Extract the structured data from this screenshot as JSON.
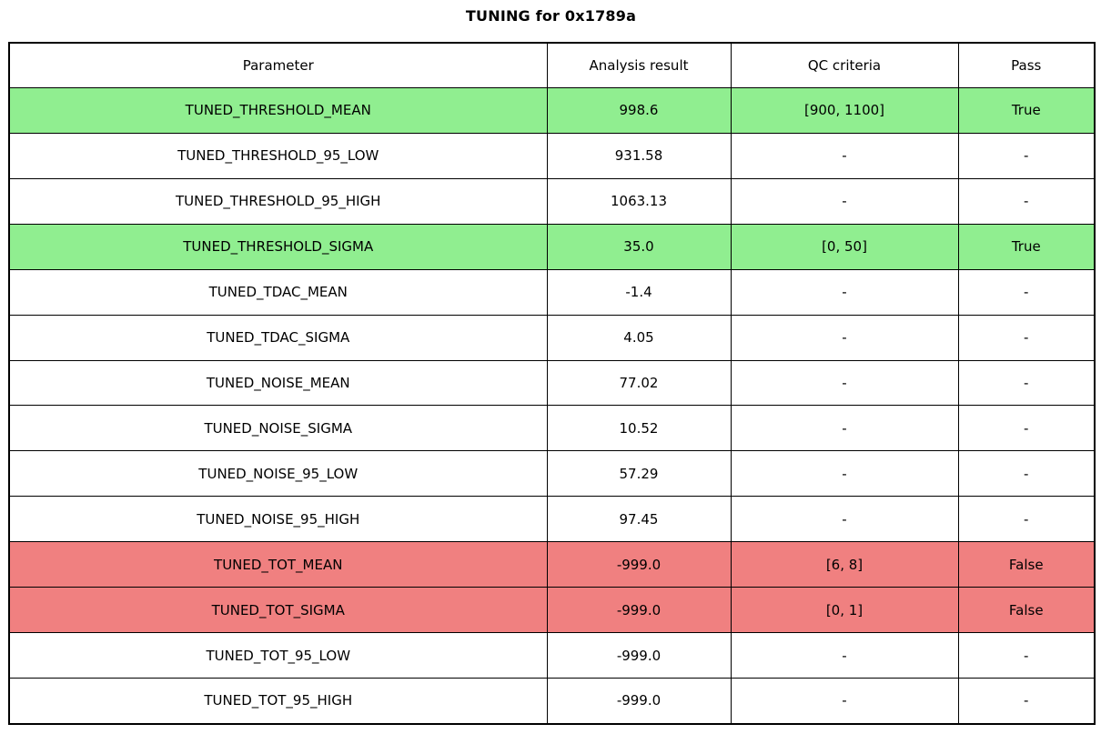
{
  "title": "TUNING for 0x1789a",
  "colors": {
    "pass_row": "#90EE90",
    "fail_row": "#F08080",
    "default_row": "#FFFFFF",
    "border": "#000000",
    "text": "#000000"
  },
  "chart_data": {
    "type": "table",
    "title": "TUNING for 0x1789a",
    "columns": [
      "Parameter",
      "Analysis result",
      "QC criteria",
      "Pass"
    ],
    "rows": [
      {
        "parameter": "TUNED_THRESHOLD_MEAN",
        "result": "998.6",
        "qc": "[900, 1100]",
        "pass": "True",
        "status": "pass"
      },
      {
        "parameter": "TUNED_THRESHOLD_95_LOW",
        "result": "931.58",
        "qc": "-",
        "pass": "-",
        "status": "none"
      },
      {
        "parameter": "TUNED_THRESHOLD_95_HIGH",
        "result": "1063.13",
        "qc": "-",
        "pass": "-",
        "status": "none"
      },
      {
        "parameter": "TUNED_THRESHOLD_SIGMA",
        "result": "35.0",
        "qc": "[0, 50]",
        "pass": "True",
        "status": "pass"
      },
      {
        "parameter": "TUNED_TDAC_MEAN",
        "result": "-1.4",
        "qc": "-",
        "pass": "-",
        "status": "none"
      },
      {
        "parameter": "TUNED_TDAC_SIGMA",
        "result": "4.05",
        "qc": "-",
        "pass": "-",
        "status": "none"
      },
      {
        "parameter": "TUNED_NOISE_MEAN",
        "result": "77.02",
        "qc": "-",
        "pass": "-",
        "status": "none"
      },
      {
        "parameter": "TUNED_NOISE_SIGMA",
        "result": "10.52",
        "qc": "-",
        "pass": "-",
        "status": "none"
      },
      {
        "parameter": "TUNED_NOISE_95_LOW",
        "result": "57.29",
        "qc": "-",
        "pass": "-",
        "status": "none"
      },
      {
        "parameter": "TUNED_NOISE_95_HIGH",
        "result": "97.45",
        "qc": "-",
        "pass": "-",
        "status": "none"
      },
      {
        "parameter": "TUNED_TOT_MEAN",
        "result": "-999.0",
        "qc": "[6, 8]",
        "pass": "False",
        "status": "fail"
      },
      {
        "parameter": "TUNED_TOT_SIGMA",
        "result": "-999.0",
        "qc": "[0, 1]",
        "pass": "False",
        "status": "fail"
      },
      {
        "parameter": "TUNED_TOT_95_LOW",
        "result": "-999.0",
        "qc": "-",
        "pass": "-",
        "status": "none"
      },
      {
        "parameter": "TUNED_TOT_95_HIGH",
        "result": "-999.0",
        "qc": "-",
        "pass": "-",
        "status": "none"
      }
    ]
  }
}
